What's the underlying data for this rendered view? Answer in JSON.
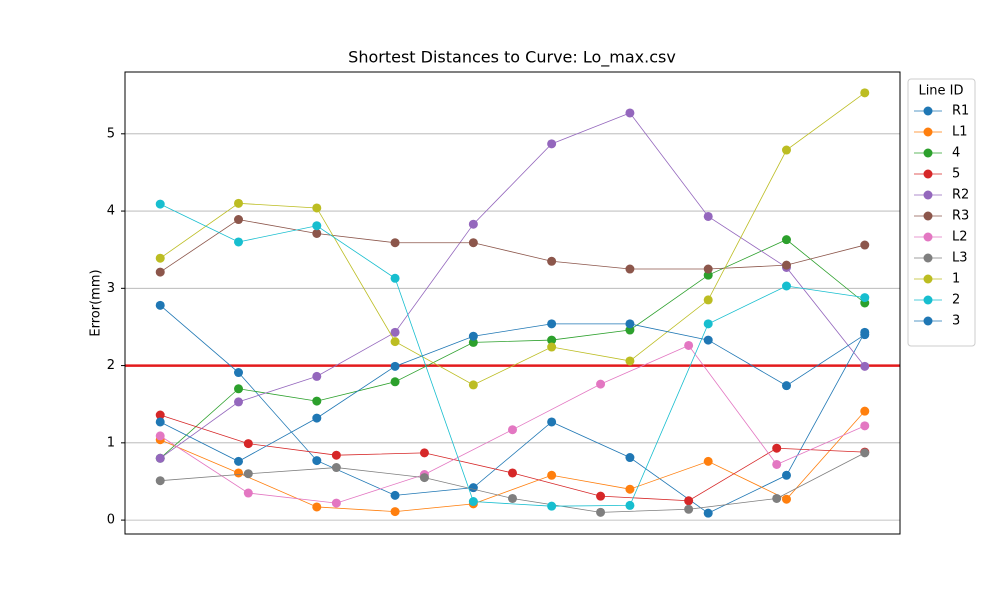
{
  "chart_data": {
    "type": "line",
    "title": "Shortest Distances to Curve: Lo_max.csv",
    "y_label": "Error(mm)",
    "legend_title": "Line ID",
    "legend": "outside upper right",
    "xlim": [
      -0.45,
      9.45
    ],
    "ylim": [
      -0.18,
      5.8
    ],
    "yticks": [
      0,
      1,
      2,
      3,
      4,
      5
    ],
    "grid": "y",
    "threshold": {
      "value": 2,
      "color": "#e31a1c"
    },
    "series": [
      {
        "name": "R1",
        "color": "#1f77b4",
        "x": [
          0,
          1,
          2,
          3,
          4,
          5,
          6,
          7,
          8,
          9
        ],
        "values": [
          2.78,
          1.91,
          0.77,
          0.32,
          0.42,
          1.27,
          0.81,
          0.09,
          0.58,
          2.43
        ]
      },
      {
        "name": "L1",
        "color": "#ff7f0e",
        "x": [
          0,
          1,
          2,
          3,
          4,
          5,
          6,
          7,
          8,
          9
        ],
        "values": [
          1.04,
          0.61,
          0.17,
          0.11,
          0.21,
          0.58,
          0.4,
          0.76,
          0.27,
          1.41
        ]
      },
      {
        "name": "4",
        "color": "#2ca02c",
        "x": [
          0,
          1,
          2,
          3,
          4,
          5,
          6,
          7,
          8,
          9
        ],
        "values": [
          0.8,
          1.7,
          1.54,
          1.79,
          2.3,
          2.33,
          2.46,
          3.17,
          3.63,
          2.81
        ]
      },
      {
        "name": "5",
        "color": "#d62728",
        "x": [
          0,
          1.125,
          2.25,
          3.375,
          4.5,
          5.625,
          6.75,
          7.875,
          9
        ],
        "values": [
          1.36,
          0.99,
          0.84,
          0.87,
          0.61,
          0.31,
          0.25,
          0.93,
          0.88
        ]
      },
      {
        "name": "R2",
        "color": "#9467bd",
        "x": [
          0,
          1,
          2,
          3,
          4,
          5,
          6,
          7,
          8,
          9
        ],
        "values": [
          0.8,
          1.53,
          1.86,
          2.43,
          3.83,
          4.87,
          5.27,
          3.93,
          3.27,
          1.99
        ]
      },
      {
        "name": "R3",
        "color": "#8c564b",
        "x": [
          0,
          1,
          2,
          3,
          4,
          5,
          6,
          7,
          8,
          9
        ],
        "values": [
          3.21,
          3.89,
          3.71,
          3.59,
          3.59,
          3.35,
          3.25,
          3.25,
          3.3,
          3.56
        ]
      },
      {
        "name": "L2",
        "color": "#e377c2",
        "x": [
          0,
          1.125,
          2.25,
          3.375,
          4.5,
          5.625,
          6.75,
          7.875,
          9
        ],
        "values": [
          1.09,
          0.35,
          0.22,
          0.59,
          1.17,
          1.76,
          2.26,
          0.72,
          1.22
        ]
      },
      {
        "name": "L3",
        "color": "#7f7f7f",
        "x": [
          0,
          1.125,
          2.25,
          3.375,
          4.5,
          5.625,
          6.75,
          7.875,
          9
        ],
        "values": [
          0.51,
          0.6,
          0.68,
          0.55,
          0.28,
          0.1,
          0.14,
          0.28,
          0.87
        ]
      },
      {
        "name": "1",
        "color": "#bcbd22",
        "x": [
          0,
          1,
          2,
          3,
          4,
          5,
          6,
          7,
          8,
          9
        ],
        "values": [
          3.39,
          4.1,
          4.04,
          2.31,
          1.75,
          2.24,
          2.06,
          2.85,
          4.79,
          5.53
        ]
      },
      {
        "name": "2",
        "color": "#17becf",
        "x": [
          0,
          1,
          2,
          3,
          4,
          5,
          6,
          7,
          8,
          9
        ],
        "values": [
          4.09,
          3.6,
          3.81,
          3.13,
          0.24,
          0.18,
          0.19,
          2.54,
          3.03,
          2.88
        ]
      },
      {
        "name": "3",
        "color": "#1f77b4",
        "x": [
          0,
          1,
          2,
          3,
          4,
          5,
          6,
          7,
          8,
          9
        ],
        "values": [
          1.27,
          0.76,
          1.32,
          1.99,
          2.38,
          2.54,
          2.54,
          2.33,
          1.74,
          2.4
        ]
      }
    ]
  }
}
